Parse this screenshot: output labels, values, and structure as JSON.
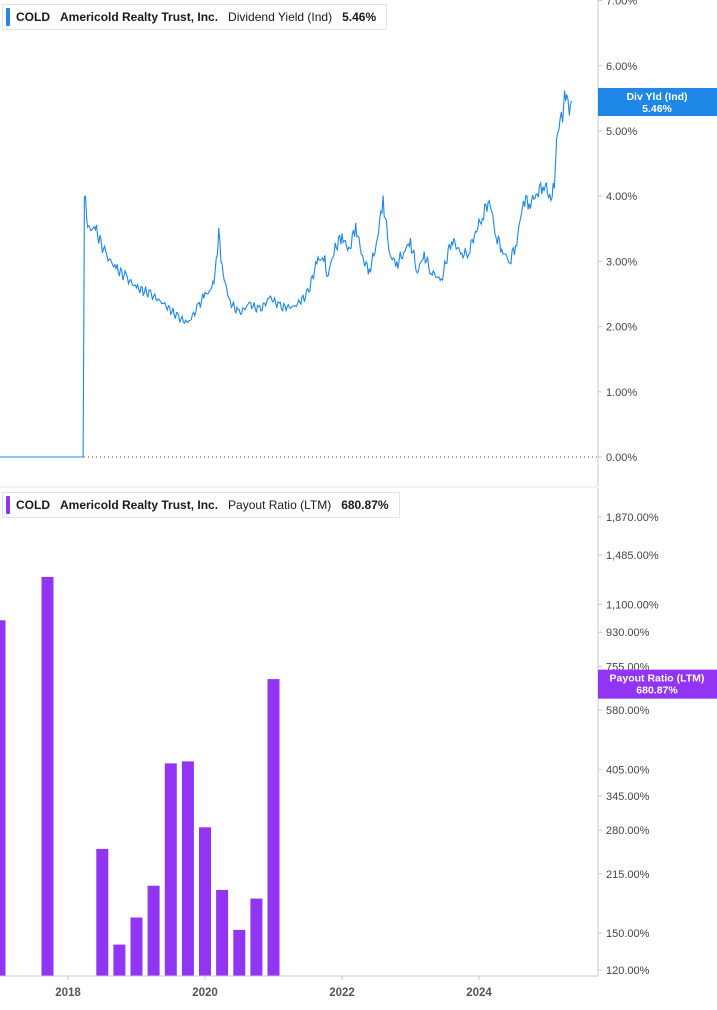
{
  "chart_data": [
    {
      "type": "line",
      "ticker": "COLD",
      "company": "Americold Realty Trust, Inc.",
      "metric": "Dividend Yield (Ind)",
      "current_value": "5.46%",
      "badge": {
        "line1": "Div Yld (Ind)",
        "line2": "5.46%"
      },
      "color": "#1f87e8",
      "y_scale": "linear",
      "ylim": [
        0,
        7
      ],
      "yticks": [
        {
          "v": 0,
          "label": "0.00%"
        },
        {
          "v": 1,
          "label": "1.00%"
        },
        {
          "v": 2,
          "label": "2.00%"
        },
        {
          "v": 3,
          "label": "3.00%"
        },
        {
          "v": 4,
          "label": "4.00%"
        },
        {
          "v": 5,
          "label": "5.00%"
        },
        {
          "v": 6,
          "label": "6.00%"
        },
        {
          "v": 7,
          "label": "7.00%"
        }
      ],
      "series": [
        {
          "x": [
            2017.0,
            2018.1,
            2018.22,
            2018.24,
            2018.3,
            2018.4,
            2018.55,
            2018.7,
            2018.85,
            2019.0,
            2019.2,
            2019.4,
            2019.6,
            2019.75,
            2019.9,
            2020.0,
            2020.1,
            2020.18,
            2020.2,
            2020.25,
            2020.35,
            2020.5,
            2020.65,
            2020.8,
            2020.95,
            2021.1,
            2021.3,
            2021.5,
            2021.65,
            2021.75,
            2021.78,
            2021.9,
            2022.0,
            2022.1,
            2022.2,
            2022.3,
            2022.4,
            2022.5,
            2022.6,
            2022.7,
            2022.8,
            2022.9,
            2023.0,
            2023.1,
            2023.2,
            2023.3,
            2023.45,
            2023.6,
            2023.75,
            2023.85,
            2023.95,
            2024.05,
            2024.15,
            2024.25,
            2024.35,
            2024.45,
            2024.55,
            2024.65,
            2024.75,
            2024.85,
            2024.95,
            2025.05,
            2025.1,
            2025.15,
            2025.22,
            2025.28,
            2025.32,
            2025.35
          ],
          "y": [
            0,
            0,
            0,
            4.0,
            3.5,
            3.5,
            3.1,
            2.9,
            2.75,
            2.6,
            2.5,
            2.35,
            2.15,
            2.05,
            2.3,
            2.5,
            2.55,
            3.05,
            3.45,
            2.9,
            2.4,
            2.2,
            2.35,
            2.25,
            2.45,
            2.3,
            2.3,
            2.5,
            3.05,
            3.0,
            2.75,
            3.2,
            3.4,
            3.15,
            3.55,
            3.05,
            2.85,
            3.25,
            3.95,
            3.1,
            2.95,
            3.15,
            3.3,
            2.85,
            3.1,
            2.85,
            2.7,
            3.35,
            3.1,
            3.15,
            3.45,
            3.7,
            3.95,
            3.4,
            3.15,
            3.0,
            3.3,
            3.95,
            3.9,
            4.05,
            4.2,
            3.95,
            4.25,
            5.0,
            5.3,
            5.6,
            5.4,
            5.46
          ]
        }
      ],
      "xlim": [
        2017.0,
        2025.75
      ],
      "xticks": [
        2018,
        2020,
        2022,
        2024
      ],
      "xlabel": "",
      "ylabel": ""
    },
    {
      "type": "bar",
      "ticker": "COLD",
      "company": "Americold Realty Trust, Inc.",
      "metric": "Payout Ratio (LTM)",
      "current_value": "680.87%",
      "badge": {
        "line1": "Payout Ratio (LTM)",
        "line2": "680.87%"
      },
      "color": "#9134f3",
      "y_scale": "log",
      "ylim": [
        120,
        1870
      ],
      "yticks": [
        {
          "v": 120,
          "label": "120.00%"
        },
        {
          "v": 150,
          "label": "150.00%"
        },
        {
          "v": 215,
          "label": "215.00%"
        },
        {
          "v": 280,
          "label": "280.00%"
        },
        {
          "v": 345,
          "label": "345.00%"
        },
        {
          "v": 405,
          "label": "405.00%"
        },
        {
          "v": 580,
          "label": "580.00%"
        },
        {
          "v": 755,
          "label": "755.00%"
        },
        {
          "v": 930,
          "label": "930.00%"
        },
        {
          "v": 1100,
          "label": "1,100.00%"
        },
        {
          "v": 1485,
          "label": "1,485.00%"
        },
        {
          "v": 1870,
          "label": "1,870.00%"
        }
      ],
      "x": [
        2017.0,
        2017.7,
        2018.5,
        2018.75,
        2019.0,
        2019.25,
        2019.5,
        2019.75,
        2020.0,
        2020.25,
        2020.5,
        2020.75,
        2021.0
      ],
      "values": [
        1000,
        1300,
        250,
        140,
        165,
        200,
        420,
        425,
        285,
        195,
        153,
        185,
        700
      ],
      "xlim": [
        2017.0,
        2025.75
      ],
      "xticks": [
        2018,
        2020,
        2022,
        2024
      ],
      "xlabel": "",
      "ylabel": ""
    }
  ],
  "colors": {
    "line": "#1f87e8",
    "bar": "#9134f3",
    "axis": "#c8c8c8",
    "text": "#444444"
  }
}
